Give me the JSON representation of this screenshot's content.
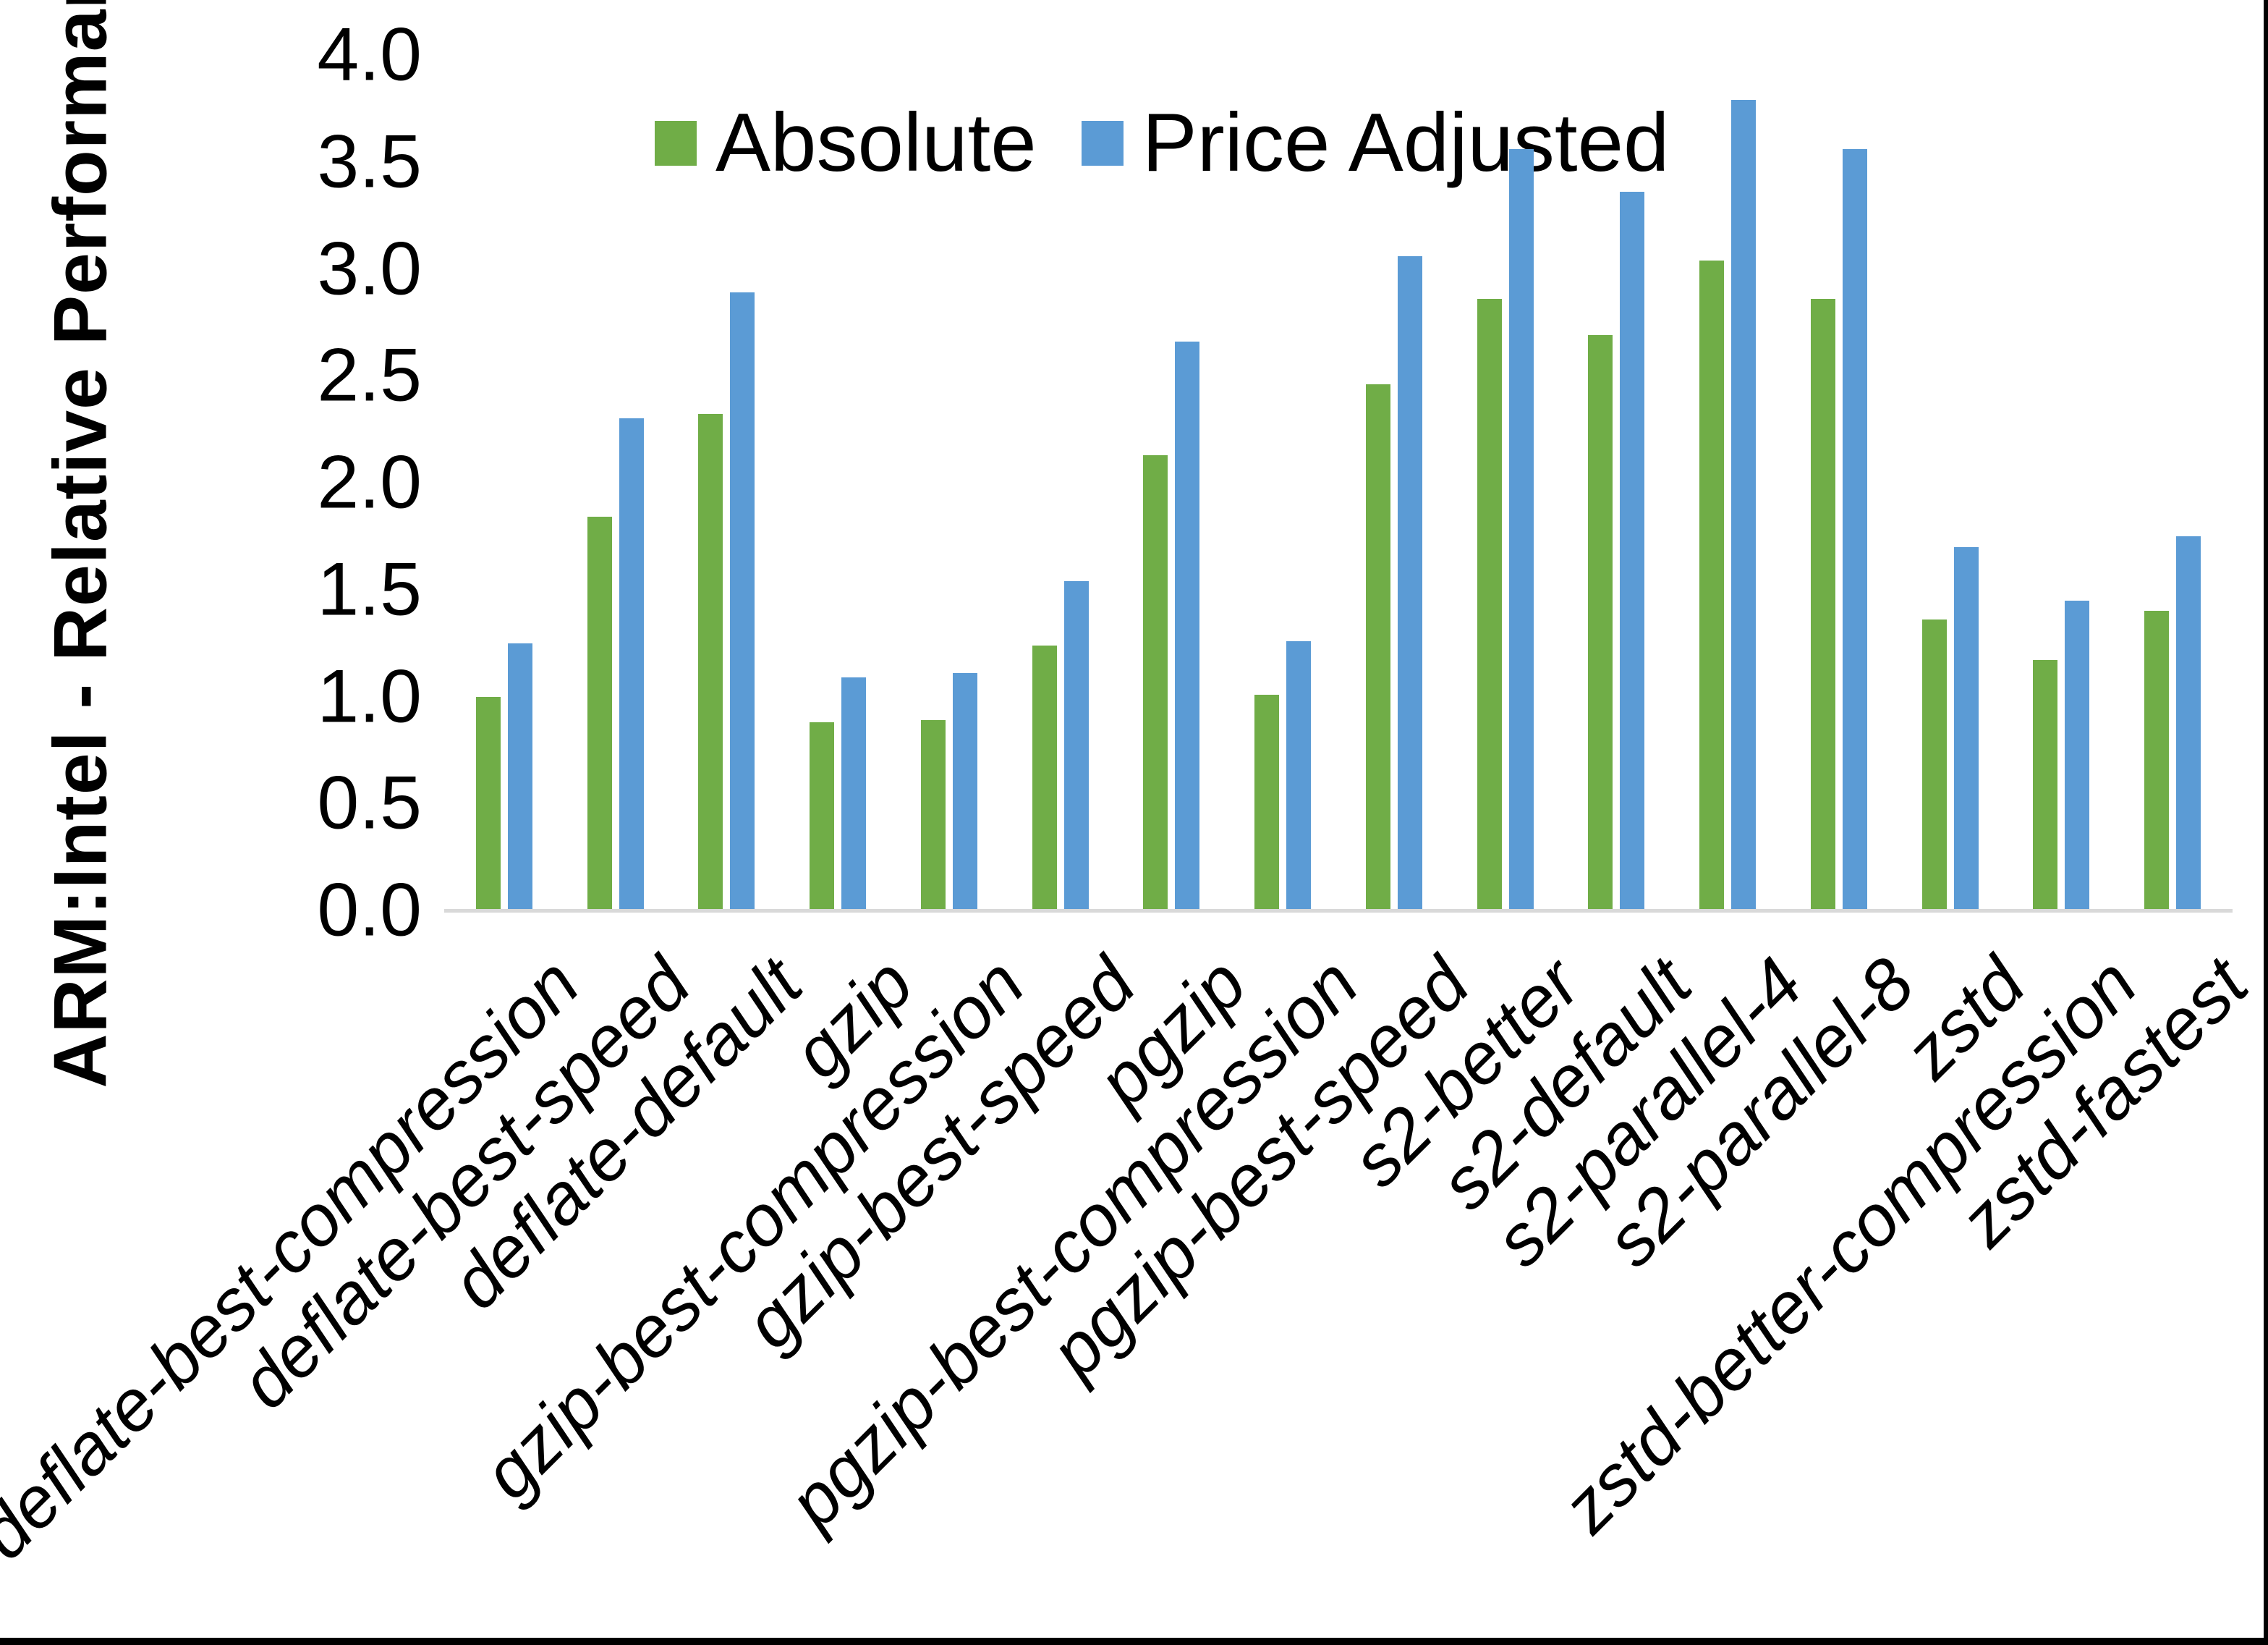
{
  "figure": {
    "background": "#ffffff",
    "frame_color": "#000000",
    "baseline_color": "#d9d9d9"
  },
  "chart_data": {
    "type": "bar",
    "title": "",
    "xlabel": "",
    "ylabel": "ARM:Intel - Relative Performance",
    "ylim": [
      0.0,
      4.0
    ],
    "ytick_step": 0.5,
    "ytick_labels": [
      "0.0",
      "0.5",
      "1.0",
      "1.5",
      "2.0",
      "2.5",
      "3.0",
      "3.5",
      "4.0"
    ],
    "grid": false,
    "legend_position": "top-center",
    "categories": [
      "deflate-best-compression",
      "deflate-best-speed",
      "deflate-default",
      "gzip",
      "gzip-best-compression",
      "gzip-best-speed",
      "pgzip",
      "pgzip-best-compression",
      "pgzip-best-speed",
      "s2-better",
      "s2-default",
      "s2-parallel-4",
      "s2-parallel-8",
      "zstd",
      "zstd-better-compression",
      "zstd-fastest"
    ],
    "series": [
      {
        "name": "Absolute",
        "color": "#70AD47",
        "values": [
          1.0,
          1.84,
          2.32,
          0.88,
          0.89,
          1.24,
          2.13,
          1.01,
          2.46,
          2.86,
          2.69,
          3.04,
          2.86,
          1.36,
          1.17,
          1.4
        ]
      },
      {
        "name": "Price Adjusted",
        "color": "#5B9BD5",
        "values": [
          1.25,
          2.3,
          2.89,
          1.09,
          1.11,
          1.54,
          2.66,
          1.26,
          3.06,
          3.56,
          3.36,
          3.79,
          3.56,
          1.7,
          1.45,
          1.75
        ]
      }
    ]
  }
}
